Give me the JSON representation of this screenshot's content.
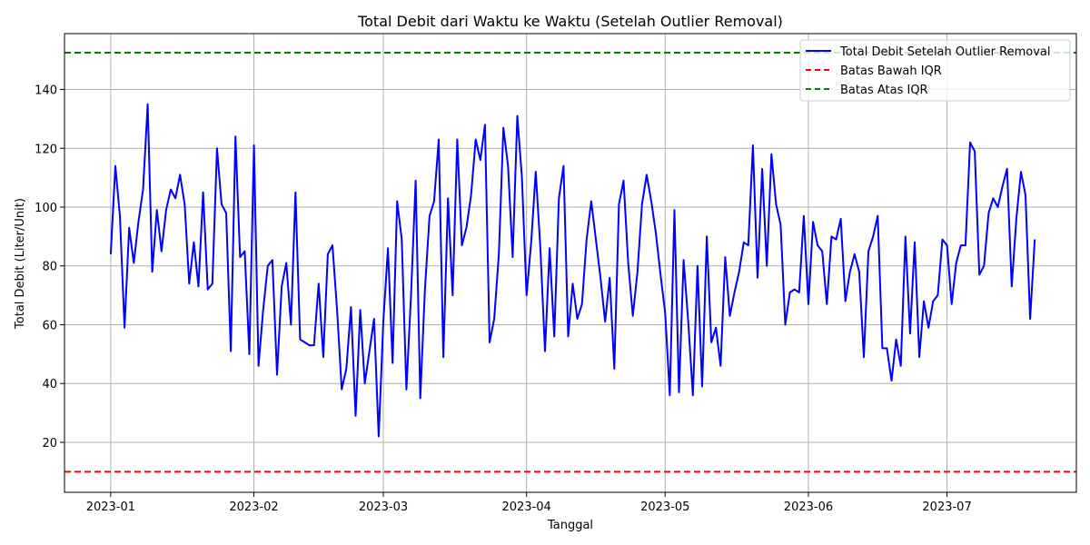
{
  "chart_data": {
    "type": "line",
    "title": "Total Debit dari Waktu ke Waktu (Setelah Outlier Removal)",
    "xlabel": "Tanggal",
    "ylabel": "Total Debit (Liter/Unit)",
    "x_start": "2023-01-01",
    "x_tick_labels": [
      "2023-01",
      "2023-02",
      "2023-03",
      "2023-04",
      "2023-05",
      "2023-06",
      "2023-07"
    ],
    "x_tick_days": [
      0,
      31,
      59,
      90,
      120,
      151,
      181
    ],
    "xlim_days": [
      -10,
      209
    ],
    "ylim": [
      3,
      159
    ],
    "y_ticks": [
      20,
      40,
      60,
      80,
      100,
      120,
      140
    ],
    "grid": true,
    "legend_position": "top-right",
    "series": [
      {
        "name": "Total Debit Setelah Outlier Removal",
        "color": "#0000ff",
        "values": [
          84,
          114,
          97,
          59,
          93,
          81,
          95,
          106,
          135,
          78,
          99,
          85,
          99,
          106,
          103,
          111,
          101,
          74,
          88,
          73,
          105,
          72,
          74,
          120,
          101,
          98,
          51,
          124,
          83,
          85,
          50,
          121,
          46,
          65,
          80,
          82,
          43,
          73,
          81,
          60,
          105,
          55,
          54,
          53,
          53,
          74,
          49,
          84,
          87,
          65,
          38,
          45,
          66,
          29,
          65,
          40,
          51,
          62,
          22,
          61,
          86,
          47,
          102,
          89,
          38,
          70,
          109,
          35,
          72,
          97,
          102,
          123,
          49,
          103,
          70,
          123,
          87,
          93,
          104,
          123,
          116,
          128,
          54,
          62,
          84,
          127,
          114,
          83,
          131,
          110,
          70,
          88,
          112,
          86,
          51,
          86,
          56,
          103,
          114,
          56,
          74,
          62,
          67,
          89,
          102,
          89,
          76,
          61,
          76,
          45,
          101,
          109,
          81,
          63,
          78,
          101,
          111,
          102,
          91,
          77,
          64,
          36,
          99,
          37,
          82,
          61,
          36,
          80,
          39,
          90,
          54,
          59,
          46,
          83,
          63,
          71,
          78,
          88,
          87,
          121,
          76,
          113,
          80,
          118,
          101,
          94,
          60,
          71,
          72,
          71,
          97,
          67,
          95,
          87,
          85,
          67,
          90,
          89,
          96,
          68,
          78,
          84,
          78,
          49,
          85,
          90,
          97,
          52,
          52,
          41,
          55,
          46,
          90,
          57,
          88,
          49,
          68,
          59,
          68,
          70,
          89,
          87,
          67,
          81,
          87,
          87,
          122,
          119,
          77,
          80,
          98,
          103,
          100,
          107,
          113,
          73,
          96,
          112,
          104,
          62,
          89
        ]
      }
    ],
    "reference_lines": [
      {
        "name": "Batas Bawah IQR",
        "value": 10,
        "color": "#ff0000"
      },
      {
        "name": "Batas Atas IQR",
        "value": 152.5,
        "color": "#008000"
      }
    ]
  }
}
